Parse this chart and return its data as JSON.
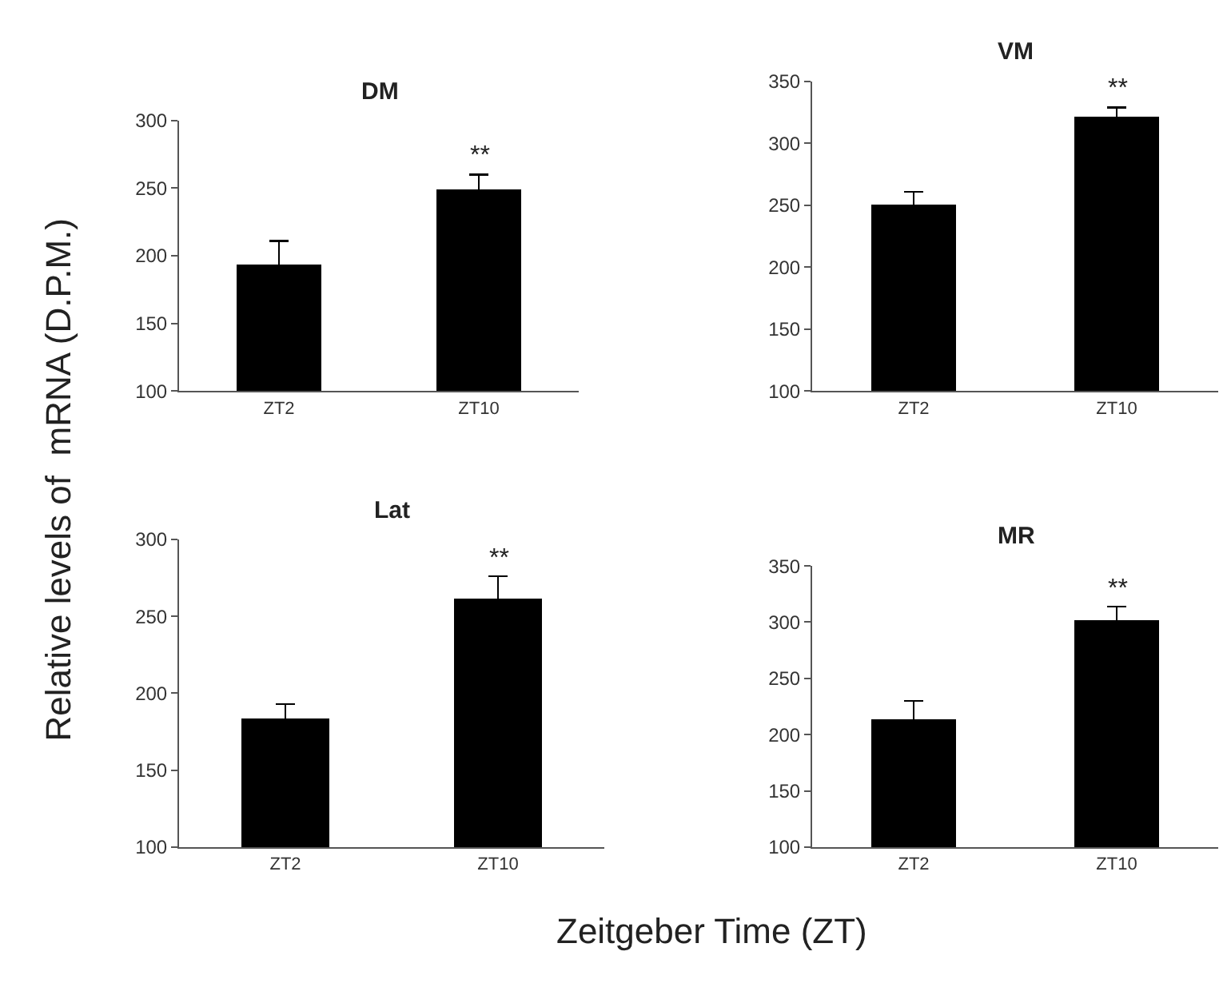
{
  "chart_data": [
    {
      "type": "bar",
      "title": "DM",
      "ylabel": "Relative levels of  mRNA (D.P.M.)",
      "categories": [
        "ZT2",
        "ZT10"
      ],
      "values": [
        194,
        249
      ],
      "errors": [
        17,
        11
      ],
      "color": "#000000",
      "ylim": [
        100,
        300
      ],
      "yticks": [
        100,
        150,
        200,
        250,
        300
      ],
      "annotations": [
        {
          "text": "**",
          "x": "ZT10",
          "y": 262
        }
      ]
    },
    {
      "type": "bar",
      "title": "VM",
      "categories": [
        "ZT2",
        "ZT10"
      ],
      "values": [
        251,
        321
      ],
      "errors": [
        10,
        8
      ],
      "color": "#000000",
      "ylim": [
        100,
        350
      ],
      "yticks": [
        100,
        150,
        200,
        250,
        300,
        350
      ],
      "annotations": [
        {
          "text": "**",
          "x": "ZT10",
          "y": 331
        }
      ]
    },
    {
      "type": "bar",
      "title": "Lat",
      "xlabel": "Zeitgeber Time (ZT)",
      "categories": [
        "ZT2",
        "ZT10"
      ],
      "values": [
        184,
        262
      ],
      "errors": [
        9,
        14
      ],
      "color": "#000000",
      "ylim": [
        100,
        300
      ],
      "yticks": [
        100,
        150,
        200,
        250,
        300
      ],
      "annotations": [
        {
          "text": "**",
          "x": "ZT10",
          "y": 277
        }
      ]
    },
    {
      "type": "bar",
      "title": "MR",
      "categories": [
        "ZT2",
        "ZT10"
      ],
      "values": [
        213,
        302
      ],
      "errors": [
        17,
        12
      ],
      "color": "#000000",
      "ylim": [
        100,
        350
      ],
      "yticks": [
        100,
        150,
        200,
        250,
        300,
        350
      ],
      "annotations": [
        {
          "text": "**",
          "x": "ZT10",
          "y": 315
        }
      ]
    }
  ]
}
